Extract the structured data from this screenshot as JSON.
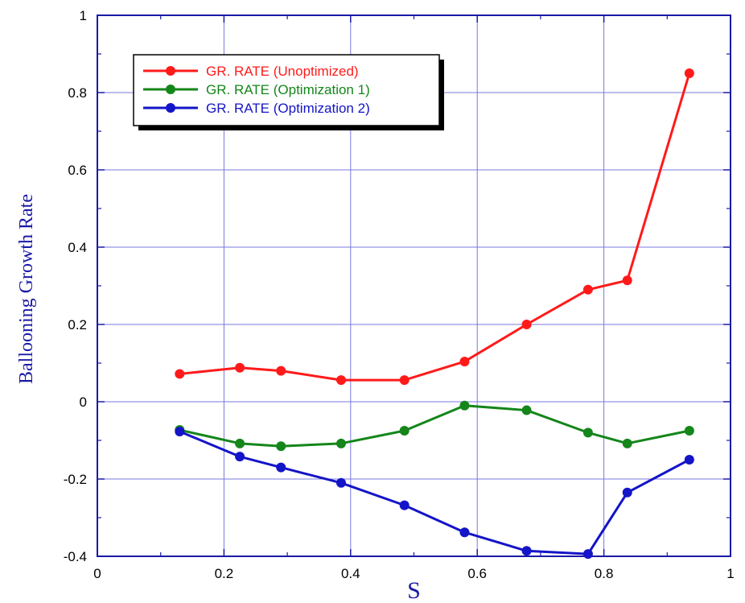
{
  "chart_data": {
    "type": "line",
    "title": "",
    "xlabel": "S",
    "ylabel": "Ballooning Growth Rate",
    "xlim": [
      0,
      1
    ],
    "ylim": [
      -0.4,
      1
    ],
    "x_ticks": [
      "0",
      "0.2",
      "0.4",
      "0.6",
      "0.8",
      "1"
    ],
    "y_ticks": [
      "-0.4",
      "-0.2",
      "0",
      "0.2",
      "0.4",
      "0.6",
      "0.8",
      "1"
    ],
    "grid": true,
    "legend_position": "top-left",
    "x": [
      0.13,
      0.225,
      0.29,
      0.385,
      0.485,
      0.58,
      0.678,
      0.775,
      0.837,
      0.935
    ],
    "series": [
      {
        "name": "GR. RATE (Unoptimized)",
        "color": "#ff1a1a",
        "values": [
          0.072,
          0.088,
          0.08,
          0.056,
          0.056,
          0.104,
          0.2,
          0.29,
          0.314,
          0.85
        ]
      },
      {
        "name": "GR. RATE (Optimization 1)",
        "color": "#14861a",
        "values": [
          -0.073,
          -0.108,
          -0.115,
          -0.108,
          -0.075,
          -0.01,
          -0.022,
          -0.08,
          -0.108,
          -0.075
        ]
      },
      {
        "name": "GR. RATE (Optimization 2)",
        "color": "#1414c8",
        "values": [
          -0.077,
          -0.142,
          -0.17,
          -0.21,
          -0.268,
          -0.338,
          -0.386,
          -0.394,
          -0.235,
          -0.15
        ]
      }
    ]
  }
}
